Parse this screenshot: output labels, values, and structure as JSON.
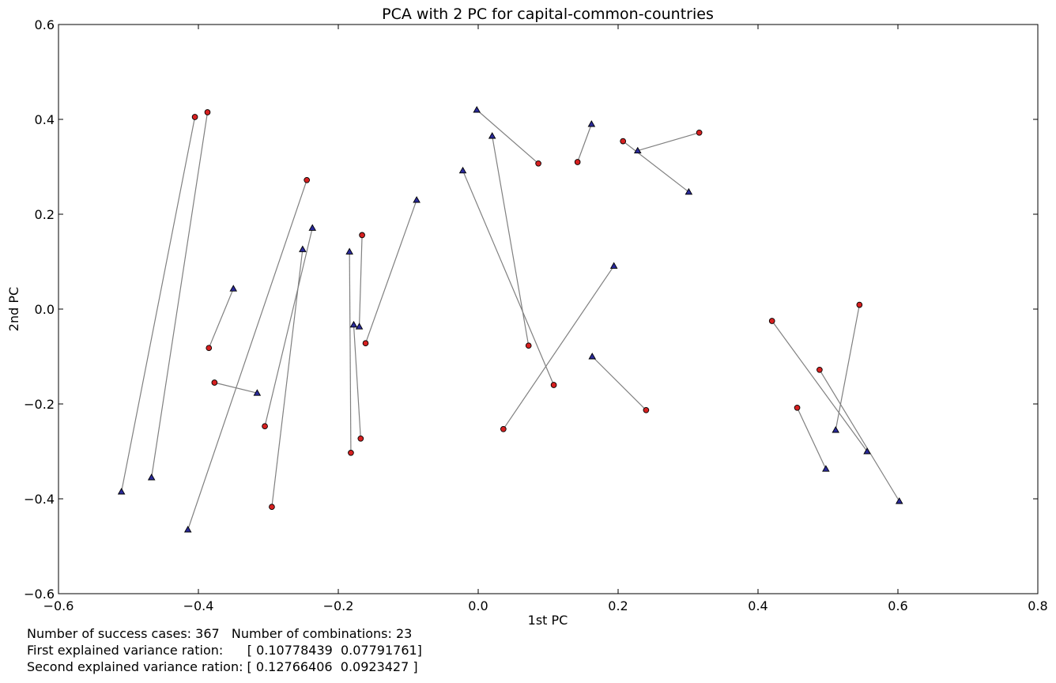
{
  "chart_data": {
    "type": "scatter",
    "title": "PCA with 2 PC for capital-common-countries",
    "xlabel": "1st PC",
    "ylabel": "2nd PC",
    "xlim": [
      -0.6,
      0.8
    ],
    "ylim": [
      -0.6,
      0.6
    ],
    "xticks": [
      -0.6,
      -0.4,
      -0.2,
      0.0,
      0.2,
      0.4,
      0.6,
      0.8
    ],
    "yticks": [
      -0.6,
      -0.4,
      -0.2,
      0.0,
      0.2,
      0.4,
      0.6
    ],
    "xtick_labels": [
      "−0.6",
      "−0.4",
      "−0.2",
      "0.0",
      "0.2",
      "0.4",
      "0.6",
      "0.8"
    ],
    "ytick_labels": [
      "−0.6",
      "−0.4",
      "−0.2",
      "0.0",
      "0.2",
      "0.4",
      "0.6"
    ],
    "grid": false,
    "colors": {
      "circle": "#d62020",
      "triangle": "#2a2a9a",
      "line": "#808080"
    },
    "pairs": [
      {
        "circle": [
          -0.405,
          0.405
        ],
        "triangle": [
          -0.51,
          -0.385
        ]
      },
      {
        "circle": [
          -0.387,
          0.415
        ],
        "triangle": [
          -0.467,
          -0.355
        ]
      },
      {
        "circle": [
          -0.245,
          0.272
        ],
        "triangle": [
          -0.415,
          -0.465
        ]
      },
      {
        "circle": [
          -0.385,
          -0.082
        ],
        "triangle": [
          -0.35,
          0.043
        ]
      },
      {
        "circle": [
          -0.377,
          -0.155
        ],
        "triangle": [
          -0.316,
          -0.177
        ]
      },
      {
        "circle": [
          -0.305,
          -0.247
        ],
        "triangle": [
          -0.237,
          0.171
        ]
      },
      {
        "circle": [
          -0.295,
          -0.417
        ],
        "triangle": [
          -0.251,
          0.126
        ]
      },
      {
        "circle": [
          -0.182,
          -0.303
        ],
        "triangle": [
          -0.184,
          0.121
        ]
      },
      {
        "circle": [
          -0.168,
          -0.273
        ],
        "triangle": [
          -0.178,
          -0.033
        ]
      },
      {
        "circle": [
          -0.166,
          0.156
        ],
        "triangle": [
          -0.17,
          -0.037
        ]
      },
      {
        "circle": [
          -0.161,
          -0.072
        ],
        "triangle": [
          -0.088,
          0.23
        ]
      },
      {
        "circle": [
          0.086,
          0.307
        ],
        "triangle": [
          -0.002,
          0.42
        ]
      },
      {
        "circle": [
          0.072,
          -0.077
        ],
        "triangle": [
          0.02,
          0.365
        ]
      },
      {
        "circle": [
          0.108,
          -0.16
        ],
        "triangle": [
          -0.022,
          0.292
        ]
      },
      {
        "circle": [
          0.036,
          -0.253
        ],
        "triangle": [
          0.194,
          0.091
        ]
      },
      {
        "circle": [
          0.142,
          0.31
        ],
        "triangle": [
          0.162,
          0.39
        ]
      },
      {
        "circle": [
          0.207,
          0.354
        ],
        "triangle": [
          0.301,
          0.247
        ]
      },
      {
        "circle": [
          0.316,
          0.372
        ],
        "triangle": [
          0.228,
          0.334
        ]
      },
      {
        "circle": [
          0.24,
          -0.213
        ],
        "triangle": [
          0.163,
          -0.1
        ]
      },
      {
        "circle": [
          0.42,
          -0.025
        ],
        "triangle": [
          0.556,
          -0.3
        ]
      },
      {
        "circle": [
          0.488,
          -0.128
        ],
        "triangle": [
          0.602,
          -0.405
        ]
      },
      {
        "circle": [
          0.456,
          -0.208
        ],
        "triangle": [
          0.497,
          -0.337
        ]
      },
      {
        "circle": [
          0.545,
          0.009
        ],
        "triangle": [
          0.511,
          -0.255
        ]
      }
    ]
  },
  "footer": {
    "line1": "Number of success cases: 367   Number of combinations: 23",
    "line2": "First explained variance ration:      [ 0.10778439  0.07791761]",
    "line3": "Second explained variance ration: [ 0.12766406  0.0923427 ]"
  }
}
